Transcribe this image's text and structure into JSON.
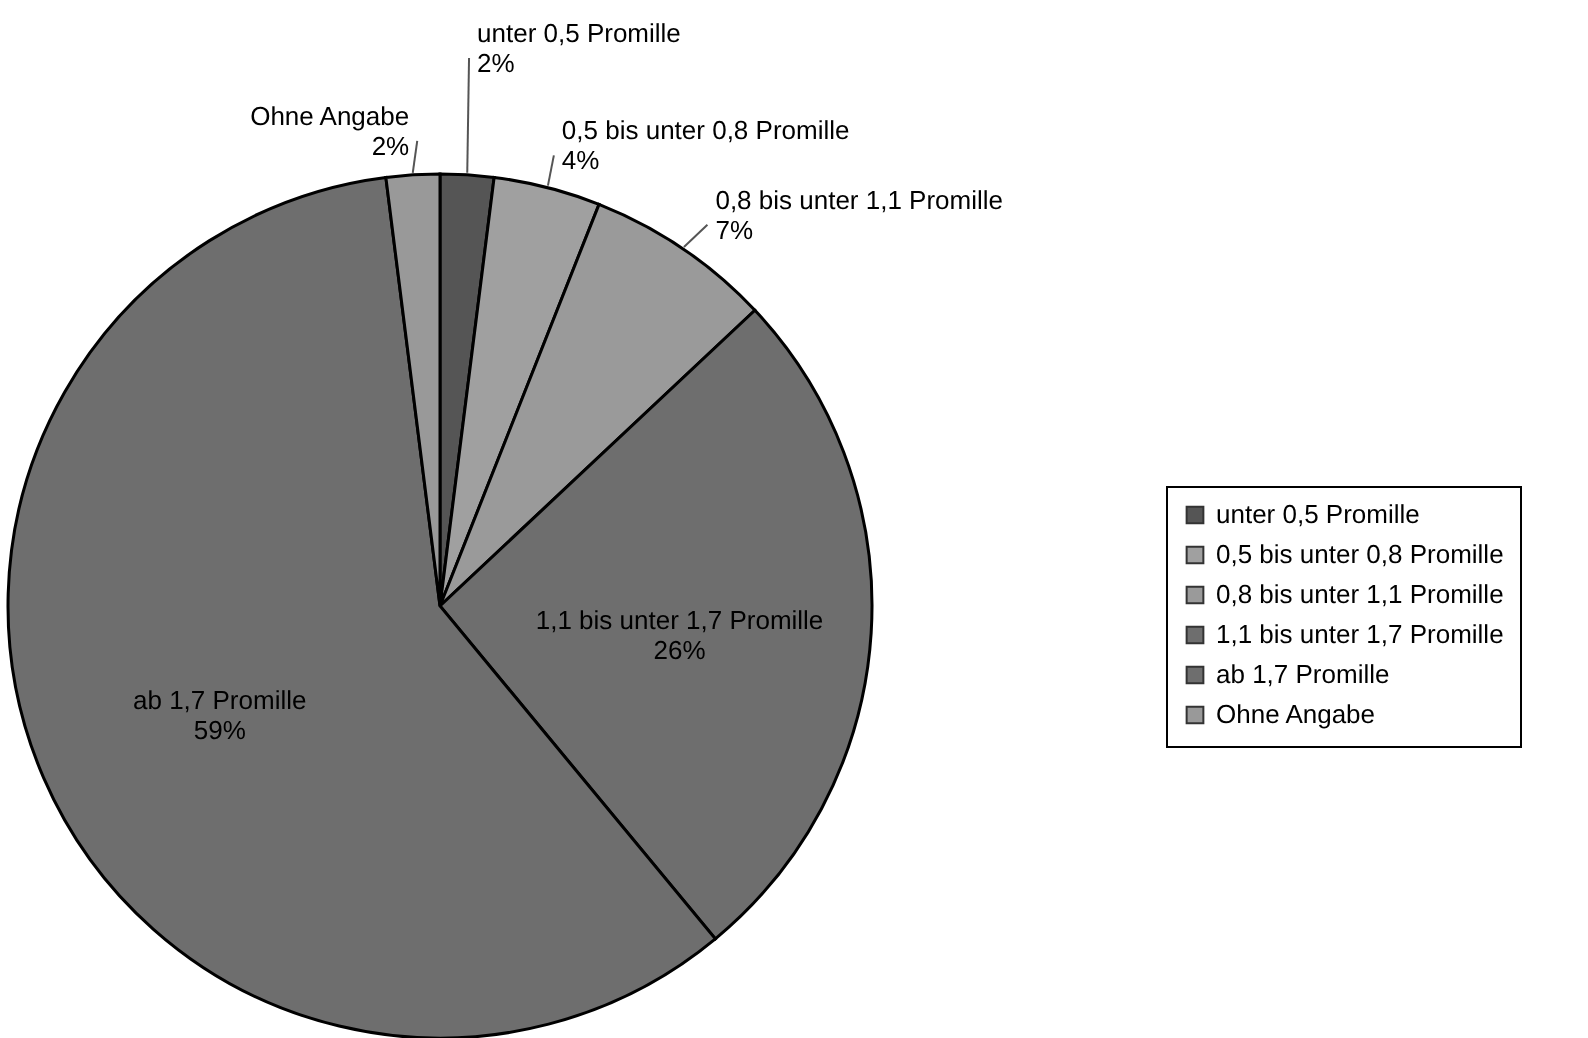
{
  "chart_data": {
    "type": "pie",
    "categories": [
      "unter 0,5 Promille",
      "0,5 bis unter 0,8 Promille",
      "0,8 bis unter 1,1 Promille",
      "1,1 bis unter 1,7 Promille",
      "ab 1,7 Promille",
      "Ohne Angabe"
    ],
    "values": [
      2,
      4,
      7,
      26,
      59,
      2
    ],
    "value_labels": [
      "2%",
      "4%",
      "7%",
      "26%",
      "59%",
      "2%"
    ],
    "colors": [
      "#555555",
      "#a0a0a0",
      "#9a9a9a",
      "#6e6e6e",
      "#6e6e6e",
      "#999999"
    ],
    "legend": "right"
  }
}
